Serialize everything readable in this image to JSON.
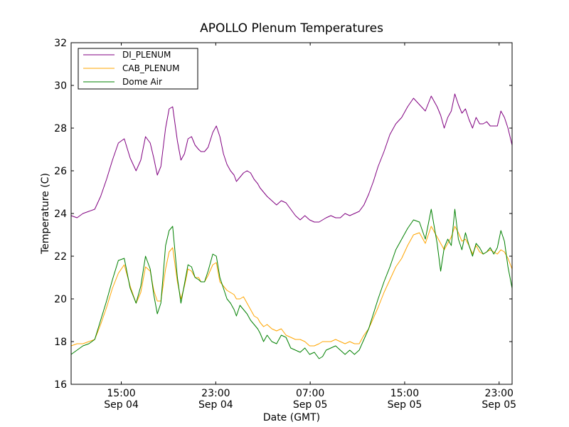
{
  "chart_data": {
    "type": "line",
    "title": "APOLLO Plenum Temperatures",
    "xlabel": "Date (GMT)",
    "ylabel": "Temperature (C)",
    "x_unit": "hours since Sep 04 10:45 GMT",
    "xlim": [
      0,
      37.35
    ],
    "ylim": [
      16,
      32
    ],
    "yticks": [
      16,
      18,
      20,
      22,
      24,
      26,
      28,
      30,
      32
    ],
    "xticks": [
      {
        "value": 4.25,
        "line1": "15:00",
        "line2": "Sep 04"
      },
      {
        "value": 12.25,
        "line1": "23:00",
        "line2": "Sep 04"
      },
      {
        "value": 20.25,
        "line1": "07:00",
        "line2": "Sep 05"
      },
      {
        "value": 28.25,
        "line1": "15:00",
        "line2": "Sep 05"
      },
      {
        "value": 36.25,
        "line1": "23:00",
        "line2": "Sep 05"
      }
    ],
    "legend_position": "top-left",
    "series": [
      {
        "name": "DI_PLENUM",
        "color": "#800080",
        "x": [
          0,
          0.5,
          1,
          1.5,
          2,
          2.5,
          3,
          3.5,
          4,
          4.5,
          5,
          5.5,
          5.9,
          6.3,
          6.7,
          7,
          7.3,
          7.6,
          8,
          8.3,
          8.6,
          9,
          9.3,
          9.6,
          9.9,
          10.2,
          10.5,
          10.8,
          11,
          11.3,
          11.6,
          12,
          12.3,
          12.6,
          12.9,
          13.2,
          13.5,
          13.8,
          14,
          14.3,
          14.6,
          14.9,
          15.2,
          15.5,
          15.8,
          16,
          16.3,
          16.6,
          17,
          17.4,
          17.8,
          18.2,
          18.6,
          19,
          19.4,
          19.8,
          20.2,
          20.6,
          21,
          21.3,
          21.6,
          22,
          22.4,
          22.8,
          23.2,
          23.6,
          24,
          24.4,
          24.8,
          25.2,
          25.6,
          26,
          26.5,
          27,
          27.5,
          28,
          28.5,
          29,
          29.5,
          30,
          30.5,
          31,
          31.3,
          31.6,
          31.9,
          32.2,
          32.5,
          32.8,
          33.1,
          33.4,
          33.7,
          34,
          34.3,
          34.6,
          34.9,
          35.2,
          35.5,
          35.8,
          36.1,
          36.4,
          36.7,
          37,
          37.35
        ],
        "y": [
          23.9,
          23.8,
          24.0,
          24.1,
          24.2,
          24.8,
          25.6,
          26.5,
          27.3,
          27.5,
          26.6,
          26.0,
          26.5,
          27.6,
          27.3,
          26.6,
          25.8,
          26.2,
          28.0,
          28.9,
          29.0,
          27.4,
          26.5,
          26.8,
          27.5,
          27.6,
          27.2,
          27.0,
          26.9,
          26.9,
          27.1,
          27.8,
          28.1,
          27.6,
          26.8,
          26.3,
          26.0,
          25.8,
          25.5,
          25.7,
          25.9,
          26.0,
          25.9,
          25.6,
          25.4,
          25.2,
          25.0,
          24.8,
          24.6,
          24.4,
          24.6,
          24.5,
          24.2,
          23.9,
          23.7,
          23.9,
          23.7,
          23.6,
          23.6,
          23.7,
          23.8,
          23.9,
          23.8,
          23.8,
          24.0,
          23.9,
          24.0,
          24.1,
          24.4,
          24.9,
          25.5,
          26.2,
          26.9,
          27.7,
          28.2,
          28.5,
          29.0,
          29.4,
          29.1,
          28.8,
          29.5,
          29.0,
          28.6,
          28.0,
          28.5,
          28.8,
          29.6,
          29.1,
          28.7,
          28.9,
          28.4,
          28.0,
          28.5,
          28.2,
          28.2,
          28.3,
          28.1,
          28.1,
          28.1,
          28.8,
          28.5,
          28.0,
          27.2
        ]
      },
      {
        "name": "CAB_PLENUM",
        "color": "#FFA500",
        "x": [
          0,
          0.5,
          1,
          1.5,
          2,
          2.5,
          3,
          3.5,
          4,
          4.5,
          5,
          5.5,
          5.9,
          6.3,
          6.7,
          7,
          7.3,
          7.6,
          8,
          8.3,
          8.6,
          9,
          9.3,
          9.6,
          9.9,
          10.2,
          10.5,
          10.8,
          11,
          11.3,
          11.6,
          12,
          12.3,
          12.6,
          12.9,
          13.2,
          13.5,
          13.8,
          14,
          14.3,
          14.6,
          14.9,
          15.2,
          15.5,
          15.8,
          16,
          16.3,
          16.6,
          17,
          17.4,
          17.8,
          18.2,
          18.6,
          19,
          19.4,
          19.8,
          20.2,
          20.6,
          21,
          21.3,
          21.6,
          22,
          22.4,
          22.8,
          23.2,
          23.6,
          24,
          24.4,
          24.8,
          25.2,
          25.6,
          26,
          26.5,
          27,
          27.5,
          28,
          28.5,
          29,
          29.5,
          30,
          30.5,
          31,
          31.3,
          31.6,
          31.9,
          32.2,
          32.5,
          32.8,
          33.1,
          33.4,
          33.7,
          34,
          34.3,
          34.6,
          34.9,
          35.2,
          35.5,
          35.8,
          36.1,
          36.4,
          36.7,
          37,
          37.35
        ],
        "y": [
          17.8,
          17.9,
          17.9,
          18.0,
          18.1,
          18.8,
          19.6,
          20.5,
          21.2,
          21.6,
          20.6,
          19.8,
          20.3,
          21.5,
          21.3,
          20.4,
          19.9,
          19.9,
          21.4,
          22.2,
          22.4,
          20.8,
          20.0,
          20.6,
          21.4,
          21.3,
          21.0,
          21.0,
          20.8,
          20.8,
          21.1,
          21.6,
          21.7,
          20.8,
          20.6,
          20.4,
          20.3,
          20.2,
          20.0,
          20.0,
          20.1,
          19.8,
          19.5,
          19.2,
          19.1,
          18.9,
          18.7,
          18.8,
          18.6,
          18.5,
          18.6,
          18.3,
          18.2,
          18.1,
          18.1,
          18.0,
          17.8,
          17.8,
          17.9,
          18.0,
          18.0,
          18.0,
          18.1,
          18.0,
          17.9,
          18.0,
          17.9,
          17.9,
          18.3,
          18.6,
          19.1,
          19.6,
          20.3,
          20.9,
          21.5,
          21.9,
          22.5,
          23.0,
          23.1,
          22.6,
          23.4,
          22.9,
          22.6,
          22.3,
          22.6,
          22.9,
          23.4,
          23.1,
          22.7,
          22.8,
          22.5,
          22.1,
          22.5,
          22.2,
          22.1,
          22.2,
          22.3,
          22.2,
          22.1,
          22.3,
          22.2,
          21.9,
          21.4
        ]
      },
      {
        "name": "Dome Air",
        "color": "#008000",
        "x": [
          0,
          0.5,
          1,
          1.5,
          2,
          2.5,
          3,
          3.5,
          4,
          4.5,
          5,
          5.5,
          5.9,
          6.3,
          6.7,
          7,
          7.3,
          7.6,
          8,
          8.3,
          8.6,
          9,
          9.3,
          9.6,
          9.9,
          10.2,
          10.5,
          10.8,
          11,
          11.3,
          11.6,
          12,
          12.3,
          12.6,
          12.9,
          13.2,
          13.5,
          13.8,
          14,
          14.3,
          14.6,
          14.9,
          15.2,
          15.5,
          15.8,
          16,
          16.3,
          16.6,
          17,
          17.4,
          17.8,
          18.2,
          18.6,
          19,
          19.4,
          19.8,
          20.2,
          20.6,
          21,
          21.3,
          21.6,
          22,
          22.4,
          22.8,
          23.2,
          23.6,
          24,
          24.4,
          24.8,
          25.2,
          25.6,
          26,
          26.5,
          27,
          27.5,
          28,
          28.5,
          29,
          29.5,
          30,
          30.5,
          31,
          31.3,
          31.6,
          31.9,
          32.2,
          32.5,
          32.8,
          33.1,
          33.4,
          33.7,
          34,
          34.3,
          34.6,
          34.9,
          35.2,
          35.5,
          35.8,
          36.1,
          36.4,
          36.7,
          37,
          37.35
        ],
        "y": [
          17.4,
          17.6,
          17.8,
          17.9,
          18.1,
          19.0,
          19.9,
          20.9,
          21.8,
          21.9,
          20.5,
          19.8,
          20.6,
          22.0,
          21.4,
          20.2,
          19.3,
          19.8,
          22.5,
          23.2,
          23.4,
          21.0,
          19.8,
          20.7,
          21.6,
          21.5,
          21.0,
          20.9,
          20.8,
          20.8,
          21.3,
          22.1,
          22.0,
          21.0,
          20.5,
          20.0,
          19.8,
          19.5,
          19.2,
          19.7,
          19.5,
          19.3,
          19.0,
          18.8,
          18.6,
          18.4,
          18.0,
          18.3,
          18.0,
          17.9,
          18.3,
          18.2,
          17.7,
          17.6,
          17.5,
          17.7,
          17.4,
          17.5,
          17.2,
          17.3,
          17.6,
          17.7,
          17.8,
          17.6,
          17.4,
          17.6,
          17.4,
          17.6,
          18.1,
          18.6,
          19.3,
          20.0,
          20.8,
          21.5,
          22.3,
          22.8,
          23.3,
          23.7,
          23.6,
          22.8,
          24.2,
          22.6,
          21.3,
          22.4,
          22.8,
          22.5,
          24.2,
          22.8,
          22.3,
          23.1,
          22.5,
          22.0,
          22.6,
          22.4,
          22.1,
          22.2,
          22.4,
          22.1,
          22.4,
          23.2,
          22.7,
          21.5,
          20.5
        ]
      }
    ]
  }
}
